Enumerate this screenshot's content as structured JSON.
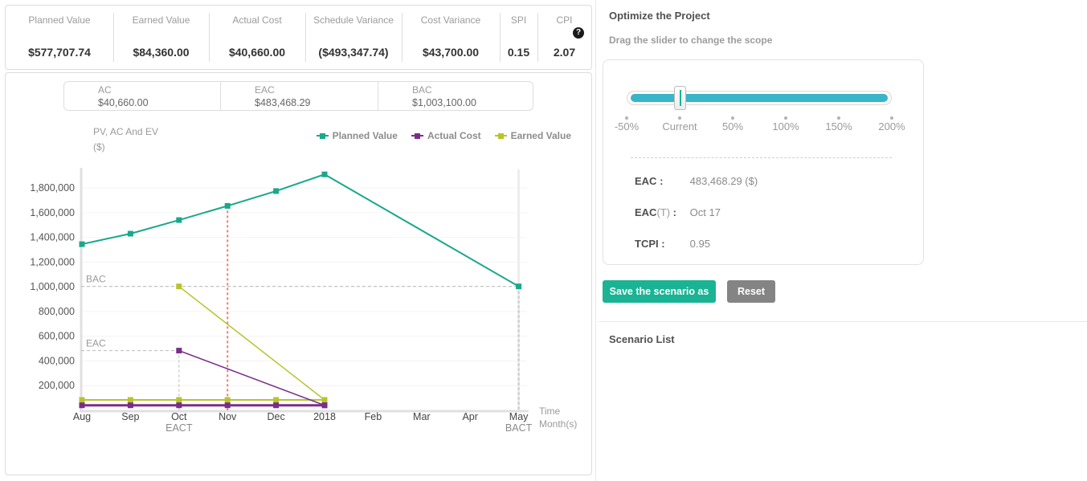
{
  "colors": {
    "accent": "#1ab394",
    "reset": "#848484",
    "track": "#38b5c8",
    "panel_text": "#515151"
  },
  "metrics_bar": {
    "help_glyph": "?",
    "items": [
      {
        "label": "Planned Value",
        "value": "$577,707.74"
      },
      {
        "label": "Earned Value",
        "value": "$84,360.00"
      },
      {
        "label": "Actual Cost",
        "value": "$40,660.00"
      },
      {
        "label": "Schedule Variance",
        "value": "($493,347.74)"
      },
      {
        "label": "Cost Variance",
        "value": "$43,700.00"
      },
      {
        "label": "SPI",
        "value": "0.15"
      },
      {
        "label": "CPI",
        "value": "2.07"
      }
    ]
  },
  "summary_row": {
    "items": [
      {
        "label": "AC",
        "value": "$40,660.00"
      },
      {
        "label": "EAC",
        "value": "$483,468.29"
      },
      {
        "label": "BAC",
        "value": "$1,003,100.00"
      }
    ]
  },
  "chart_data": {
    "type": "line",
    "title": "PV, AC And EV",
    "subtitle": "($)",
    "x_axis_name": [
      "Time",
      "Month(s)"
    ],
    "categories": [
      "Aug",
      "Sep",
      "Oct",
      "Nov",
      "Dec",
      "2018",
      "Feb",
      "Mar",
      "Apr",
      "May"
    ],
    "y_ticks": [
      200000,
      400000,
      600000,
      800000,
      1000000,
      1200000,
      1400000,
      1600000,
      1800000
    ],
    "ylim": [
      0,
      1950000
    ],
    "grid": true,
    "legend_position": "top-right",
    "legend": [
      {
        "name": "Planned Value",
        "color": "#19a88c"
      },
      {
        "name": "Actual Cost",
        "color": "#7b2d8b"
      },
      {
        "name": "Earned Value",
        "color": "#b7c42a"
      }
    ],
    "series": [
      {
        "name": "Planned Value",
        "color": "#19a88c",
        "width": 2,
        "points": [
          [
            0,
            1345000
          ],
          [
            1,
            1430000
          ],
          [
            2,
            1540000
          ],
          [
            3,
            1655000
          ],
          [
            4,
            1775000
          ],
          [
            5,
            1910000
          ],
          [
            9,
            1003100
          ]
        ]
      },
      {
        "name": "Earned Value",
        "color": "#b7c42a",
        "width": 2,
        "points": [
          [
            0,
            84360
          ],
          [
            1,
            84360
          ],
          [
            2,
            84360
          ],
          [
            3,
            84360
          ],
          [
            4,
            84360
          ],
          [
            5,
            84360
          ]
        ]
      },
      {
        "name": "Earned Value projection",
        "color": "#b7c42a",
        "width": 1.5,
        "points": [
          [
            2,
            1003100
          ],
          [
            5,
            84360
          ]
        ]
      },
      {
        "name": "Actual Cost",
        "color": "#7b2d8b",
        "width": 3,
        "points": [
          [
            0,
            40660
          ],
          [
            1,
            40660
          ],
          [
            2,
            40660
          ],
          [
            3,
            40660
          ],
          [
            4,
            40660
          ],
          [
            5,
            40660
          ]
        ]
      },
      {
        "name": "Actual Cost projection",
        "color": "#7b2d8b",
        "width": 1.5,
        "points": [
          [
            2,
            483468.29
          ],
          [
            5,
            40660
          ]
        ]
      }
    ],
    "annotations": {
      "hlines": [
        {
          "label": "BAC",
          "value": 1003100,
          "to_index": 9
        },
        {
          "label": "EAC",
          "value": 483468.29,
          "to_index": 2
        }
      ],
      "vlines": [
        {
          "label": "EACT",
          "index": 2,
          "from_value": 483468.29,
          "color": "#b8b8b8",
          "width": 1,
          "shadow": false
        },
        {
          "label": "",
          "index": 3,
          "from_value": 1655000,
          "color": "#f17c73",
          "width": 2,
          "shadow": false
        },
        {
          "label": "BACT",
          "index": 9,
          "from_value": 1003100,
          "color": "#c8c8c8",
          "width": 2,
          "shadow": true
        }
      ]
    }
  },
  "optimize_panel": {
    "title": "Optimize the Project",
    "subtitle": "Drag the slider to change the scope",
    "slider": {
      "labels": [
        "-50%",
        "Current",
        "50%",
        "100%",
        "150%",
        "200%"
      ],
      "value": "Current",
      "handle_index": 1
    },
    "stats": [
      {
        "label": "EAC",
        "suffix": "",
        "colon": " :",
        "value": "483,468.29 ($)"
      },
      {
        "label": "EAC",
        "suffix": "(T)",
        "colon": " :",
        "value": "Oct 17"
      },
      {
        "label": "TCPI",
        "suffix": "",
        "colon": " :",
        "value": "0.95"
      }
    ],
    "buttons": {
      "save": "Save the scenario as",
      "reset": "Reset"
    },
    "scenario_list_title": "Scenario List"
  }
}
